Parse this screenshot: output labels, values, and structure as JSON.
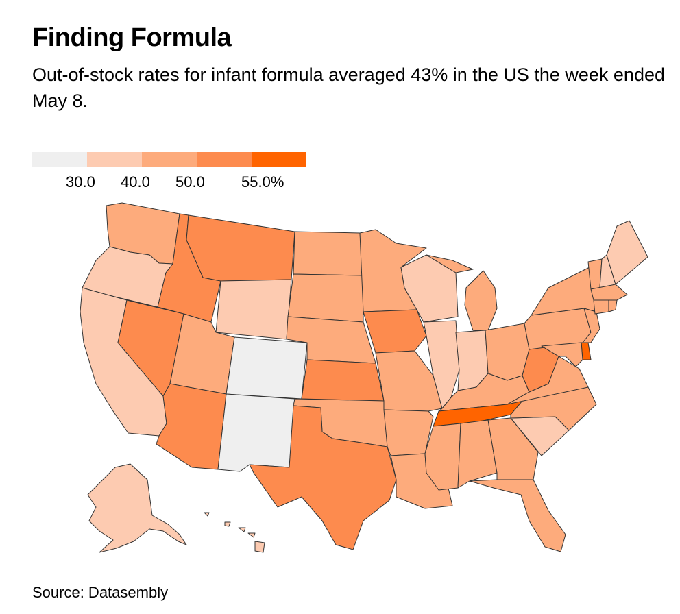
{
  "title": "Finding Formula",
  "subtitle": "Out-of-stock rates for infant formula averaged 43% in the US the week ended May 8.",
  "source": "Source: Datasembly",
  "legend": {
    "colors": [
      "#efefef",
      "#fdcbb1",
      "#fdab7c",
      "#fd8b4e",
      "#ff6400"
    ],
    "labels": [
      "30.0",
      "40.0",
      "50.0",
      "55.0%"
    ]
  },
  "bins": [
    {
      "bin": 0,
      "range": "< 30.0",
      "color": "#efefef"
    },
    {
      "bin": 1,
      "range": "30.0–40.0",
      "color": "#fdcbb1"
    },
    {
      "bin": 2,
      "range": "40.0–50.0",
      "color": "#fdab7c"
    },
    {
      "bin": 3,
      "range": "50.0–55.0",
      "color": "#fd8b4e"
    },
    {
      "bin": 4,
      "range": "> 55.0",
      "color": "#ff6400"
    }
  ],
  "states": {
    "WA": 2,
    "OR": 1,
    "CA": 1,
    "NV": 3,
    "ID": 3,
    "MT": 3,
    "WY": 1,
    "UT": 2,
    "AZ": 3,
    "CO": 0,
    "NM": 0,
    "ND": 2,
    "SD": 2,
    "NE": 2,
    "KS": 3,
    "OK": 2,
    "TX": 3,
    "MN": 2,
    "IA": 3,
    "MO": 2,
    "AR": 2,
    "LA": 2,
    "WI": 1,
    "IL": 1,
    "MI": 2,
    "IN": 1,
    "OH": 2,
    "KY": 2,
    "TN": 4,
    "MS": 2,
    "AL": 2,
    "GA": 2,
    "FL": 2,
    "SC": 1,
    "NC": 2,
    "VA": 2,
    "WV": 3,
    "PA": 2,
    "NY": 2,
    "VT": 2,
    "NH": 1,
    "ME": 1,
    "MA": 2,
    "RI": 2,
    "CT": 2,
    "NJ": 2,
    "DE": 4,
    "MD": 2,
    "AK": 1,
    "HI": 1
  }
}
